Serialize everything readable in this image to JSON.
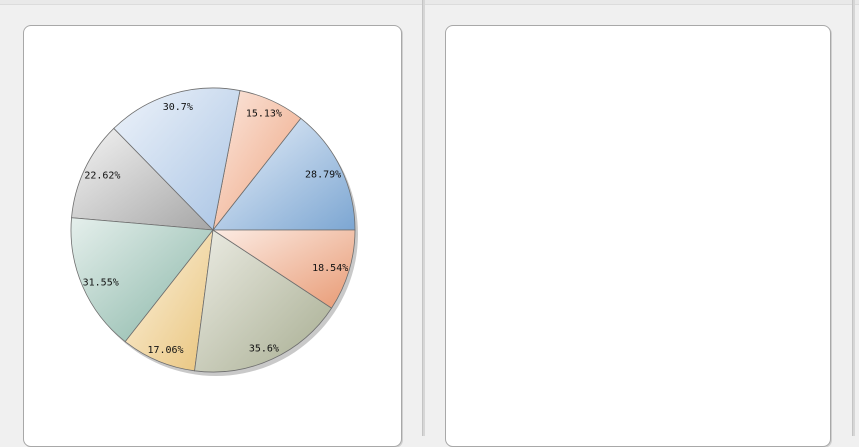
{
  "chart_data": {
    "type": "pie",
    "title": "",
    "legend": "none",
    "slices": [
      {
        "label": "28.79%",
        "value": 28.79,
        "color_light": "#eaf1fa",
        "color_dark": "#7ca6d2"
      },
      {
        "label": "15.13%",
        "value": 15.13,
        "color_light": "#fbe8df",
        "color_dark": "#eea37e"
      },
      {
        "label": "30.7%",
        "value": 30.7,
        "color_light": "#eef3fa",
        "color_dark": "#a9c4e4"
      },
      {
        "label": "22.62%",
        "value": 22.62,
        "color_light": "#f4f4f4",
        "color_dark": "#a6a6a6"
      },
      {
        "label": "31.55%",
        "value": 31.55,
        "color_light": "#e5efec",
        "color_dark": "#87b5a6"
      },
      {
        "label": "17.06%",
        "value": 17.06,
        "color_light": "#fcf3e1",
        "color_dark": "#e9c47b"
      },
      {
        "label": "35.6%",
        "value": 35.6,
        "color_light": "#ecece4",
        "color_dark": "#a7ad91"
      },
      {
        "label": "18.54%",
        "value": 18.54,
        "color_light": "#fcece4",
        "color_dark": "#e89a74"
      }
    ]
  }
}
